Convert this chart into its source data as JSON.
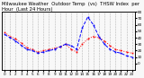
{
  "title": "Milwaukee Weather  Outdoor Temp  (vs)  THSW Index  per Hour  (Last 24 Hours)",
  "bg_color": "#f8f8f8",
  "plot_bg": "#f8f8f8",
  "grid_color": "#888888",
  "ylim": [
    -10,
    80
  ],
  "yticks": [
    0,
    10,
    20,
    30,
    40,
    50,
    60,
    70,
    80
  ],
  "hours": [
    0,
    1,
    2,
    3,
    4,
    5,
    6,
    7,
    8,
    9,
    10,
    11,
    12,
    13,
    14,
    15,
    16,
    17,
    18,
    19,
    20,
    21,
    22,
    23
  ],
  "temp": [
    48,
    42,
    38,
    32,
    25,
    22,
    18,
    20,
    22,
    24,
    26,
    30,
    22,
    18,
    30,
    38,
    42,
    40,
    35,
    28,
    22,
    20,
    18,
    16
  ],
  "thsw": [
    45,
    40,
    35,
    28,
    22,
    20,
    16,
    18,
    20,
    22,
    26,
    30,
    28,
    22,
    55,
    72,
    60,
    42,
    30,
    22,
    18,
    16,
    12,
    10
  ],
  "temp_color": "#ff0000",
  "thsw_color": "#0000ff",
  "temp_style": "dotted",
  "thsw_style": "dashed",
  "title_fontsize": 3.8,
  "tick_fontsize": 3.0,
  "linewidth": 0.7,
  "markersize": 1.2
}
